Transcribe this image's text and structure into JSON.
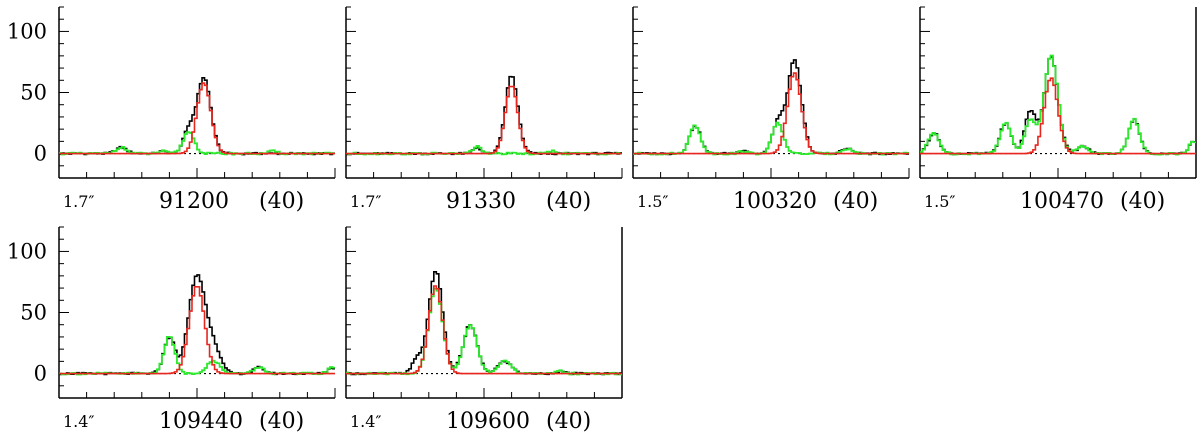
{
  "chart_data": {
    "type": "line",
    "ylim": [
      -20,
      120
    ],
    "y_ticks": [
      0,
      50,
      100
    ],
    "y_tick_labels": [
      "0",
      "50",
      "100"
    ],
    "x_range": [
      -1,
      1
    ],
    "colors": {
      "observed": "#000000",
      "fit": "#e8261e",
      "residual": "#2ee82e",
      "baseline": "#000000"
    },
    "panels": [
      {
        "resolution": "1.7″",
        "frequency": "91200",
        "note": "(40)",
        "peaks_observed": [
          [
            0.05,
            62,
            0.05
          ],
          [
            -0.06,
            18,
            0.04
          ],
          [
            -0.55,
            5,
            0.04
          ],
          [
            -0.25,
            2,
            0.03
          ]
        ],
        "peaks_fit": [
          [
            0.05,
            58,
            0.05
          ]
        ],
        "peaks_residual": [
          [
            -0.06,
            18,
            0.04
          ],
          [
            -0.55,
            5,
            0.04
          ],
          [
            -0.25,
            2,
            0.03
          ],
          [
            0.55,
            2,
            0.03
          ]
        ]
      },
      {
        "resolution": "1.7″",
        "frequency": "91330",
        "note": "(40)",
        "peaks_observed": [
          [
            0.2,
            64,
            0.045
          ],
          [
            -0.05,
            5,
            0.03
          ]
        ],
        "peaks_fit": [
          [
            0.2,
            56,
            0.045
          ]
        ],
        "peaks_residual": [
          [
            -0.05,
            6,
            0.03
          ],
          [
            0.5,
            2,
            0.03
          ]
        ]
      },
      {
        "resolution": "1.5″",
        "frequency": "100320",
        "note": "(40)",
        "peaks_observed": [
          [
            0.17,
            76,
            0.05
          ],
          [
            0.05,
            25,
            0.04
          ],
          [
            -0.55,
            23,
            0.04
          ],
          [
            -0.2,
            3,
            0.03
          ],
          [
            0.55,
            4,
            0.04
          ]
        ],
        "peaks_fit": [
          [
            0.17,
            66,
            0.05
          ]
        ],
        "peaks_residual": [
          [
            0.05,
            25,
            0.04
          ],
          [
            -0.55,
            23,
            0.04
          ],
          [
            -0.2,
            2,
            0.03
          ],
          [
            0.55,
            4,
            0.04
          ]
        ]
      },
      {
        "resolution": "1.5″",
        "frequency": "100470",
        "note": "(40)",
        "peaks_observed": [
          [
            -0.05,
            80,
            0.05
          ],
          [
            -0.2,
            35,
            0.04
          ],
          [
            -0.38,
            25,
            0.04
          ],
          [
            -0.9,
            17,
            0.04
          ],
          [
            0.55,
            28,
            0.04
          ],
          [
            0.18,
            6,
            0.04
          ],
          [
            0.98,
            10,
            0.03
          ]
        ],
        "peaks_fit": [
          [
            -0.05,
            62,
            0.05
          ]
        ],
        "peaks_residual": [
          [
            -0.05,
            80,
            0.05
          ],
          [
            -0.2,
            28,
            0.04
          ],
          [
            -0.38,
            25,
            0.04
          ],
          [
            -0.9,
            17,
            0.04
          ],
          [
            0.55,
            28,
            0.04
          ],
          [
            0.18,
            6,
            0.04
          ],
          [
            0.98,
            10,
            0.03
          ]
        ]
      },
      {
        "resolution": "1.4″",
        "frequency": "109440",
        "note": "(40)",
        "peaks_observed": [
          [
            0.0,
            80,
            0.06
          ],
          [
            -0.2,
            30,
            0.04
          ],
          [
            0.12,
            20,
            0.05
          ],
          [
            0.45,
            5,
            0.04
          ],
          [
            0.98,
            5,
            0.03
          ]
        ],
        "peaks_fit": [
          [
            0.0,
            72,
            0.055
          ]
        ],
        "peaks_residual": [
          [
            -0.2,
            30,
            0.04
          ],
          [
            0.12,
            10,
            0.05
          ],
          [
            0.45,
            5,
            0.04
          ],
          [
            0.98,
            5,
            0.03
          ]
        ]
      },
      {
        "resolution": "1.4″",
        "frequency": "109600",
        "note": "(40)",
        "peaks_observed": [
          [
            -0.35,
            84,
            0.05
          ],
          [
            -0.48,
            12,
            0.04
          ],
          [
            -0.1,
            40,
            0.05
          ],
          [
            0.15,
            10,
            0.05
          ],
          [
            0.55,
            2,
            0.03
          ]
        ],
        "peaks_fit": [
          [
            -0.35,
            72,
            0.05
          ]
        ],
        "peaks_residual": [
          [
            -0.35,
            70,
            0.05
          ],
          [
            -0.1,
            40,
            0.05
          ],
          [
            0.15,
            10,
            0.05
          ],
          [
            0.55,
            2,
            0.03
          ]
        ]
      }
    ]
  }
}
